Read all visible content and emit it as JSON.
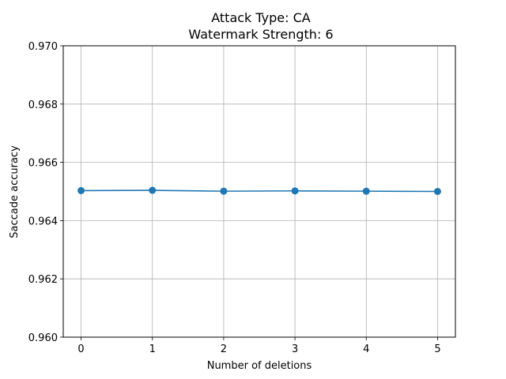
{
  "chart_data": {
    "type": "line",
    "title_line1": "Attack Type: CA",
    "title_line2": "Watermark Strength: 6",
    "xlabel": "Number of deletions",
    "ylabel": "Saccade accuracy",
    "x": [
      0,
      1,
      2,
      3,
      4,
      5
    ],
    "series": [
      {
        "values": [
          0.96503,
          0.96504,
          0.96501,
          0.96502,
          0.96501,
          0.965
        ]
      }
    ],
    "xlim": [
      -0.25,
      5.25
    ],
    "ylim": [
      0.96,
      0.97
    ],
    "xticks": [
      0,
      1,
      2,
      3,
      4,
      5
    ],
    "xtick_labels": [
      "0",
      "1",
      "2",
      "3",
      "4",
      "5"
    ],
    "yticks": [
      0.96,
      0.962,
      0.964,
      0.966,
      0.968,
      0.97
    ],
    "ytick_labels": [
      "0.960",
      "0.962",
      "0.964",
      "0.966",
      "0.968",
      "0.970"
    ],
    "grid": true,
    "line_color": "#1f77b4",
    "grid_color": "#b0b0b0"
  }
}
